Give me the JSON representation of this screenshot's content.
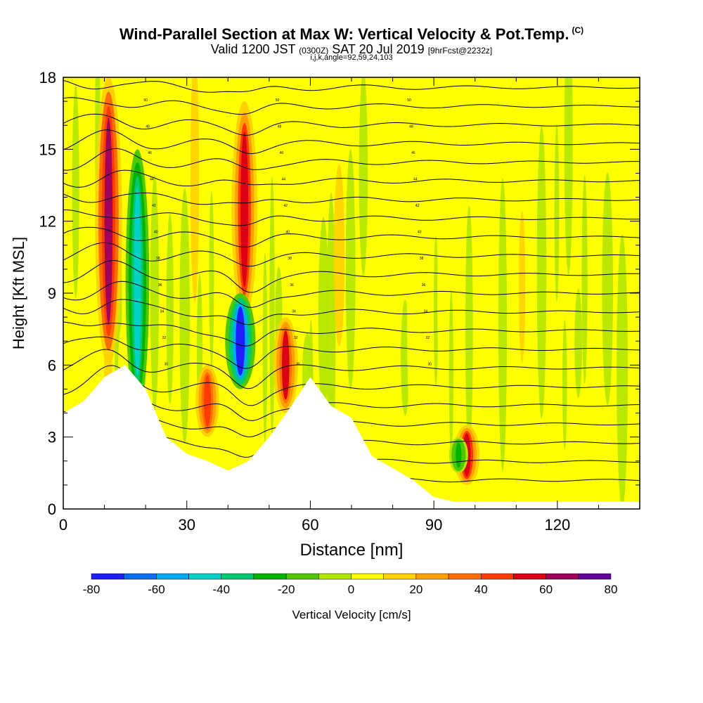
{
  "header": {
    "title": "Wind-Parallel Section at Max W: Vertical Velocity & Pot.Temp.",
    "title_units": "(C)",
    "valid_prefix": "Valid 1200 JST",
    "valid_utc": "(0300Z)",
    "valid_date": "SAT 20 Jul 2019",
    "forecast": "[9hrFcst@2232z]",
    "indices": "i,j,k,angle=92,59,24,103"
  },
  "chart_data": {
    "type": "heatmap",
    "xlabel": "Distance [nm]",
    "ylabel": "Height [Kft MSL]",
    "xlim": [
      0,
      140
    ],
    "ylim": [
      0,
      18
    ],
    "x_ticks": [
      "0",
      "30",
      "60",
      "90",
      "120"
    ],
    "y_ticks": [
      "0",
      "3",
      "6",
      "9",
      "12",
      "15",
      "18"
    ],
    "colorbar": {
      "label": "Vertical Velocity [cm/s]",
      "tick_labels": [
        "-80",
        "-60",
        "-40",
        "-20",
        "0",
        "20",
        "40",
        "60",
        "80"
      ],
      "levels": [
        -80,
        -70,
        -60,
        -50,
        -40,
        -30,
        -20,
        -10,
        0,
        10,
        20,
        30,
        40,
        50,
        60,
        70,
        80
      ],
      "colors": [
        "#1e1eff",
        "#0a6ef0",
        "#00aaf0",
        "#00d2c8",
        "#00c870",
        "#00b400",
        "#50c800",
        "#b4e600",
        "#ffff00",
        "#ffd200",
        "#ffa000",
        "#ff6e00",
        "#ff3c00",
        "#dc0014",
        "#a0005a",
        "#64009b"
      ]
    },
    "updrafts": [
      {
        "x": 11,
        "y_min": 6,
        "y_max": 18,
        "w": 60
      },
      {
        "x": 44,
        "y_min": 8,
        "y_max": 17,
        "w": 55
      },
      {
        "x": 54,
        "y_min": 4,
        "y_max": 8,
        "w": 50
      },
      {
        "x": 35,
        "y_min": 3,
        "y_max": 6,
        "w": 45
      },
      {
        "x": 98,
        "y_min": 1,
        "y_max": 3.5,
        "w": 55
      }
    ],
    "downdrafts": [
      {
        "x": 43,
        "y_min": 5,
        "y_max": 9,
        "w": -75
      },
      {
        "x": 18,
        "y_min": 4,
        "y_max": 15,
        "w": -45
      },
      {
        "x": 96,
        "y_min": 1.5,
        "y_max": 3,
        "w": -25
      }
    ],
    "terrain_kft": [
      4.0,
      4.5,
      5.5,
      6.0,
      5.0,
      3.0,
      2.3,
      2.0,
      1.6,
      2.0,
      3.0,
      4.2,
      5.5,
      4.3,
      3.8,
      2.2,
      1.7,
      1.2,
      0.5,
      0.3,
      0.3,
      0.3,
      0.3,
      0.3,
      0.3,
      0.3,
      0.3,
      0.3,
      0.3
    ],
    "isentrope_labels": [
      "50",
      "48",
      "46",
      "44",
      "42",
      "40",
      "38",
      "36",
      "34",
      "32",
      "30"
    ]
  }
}
